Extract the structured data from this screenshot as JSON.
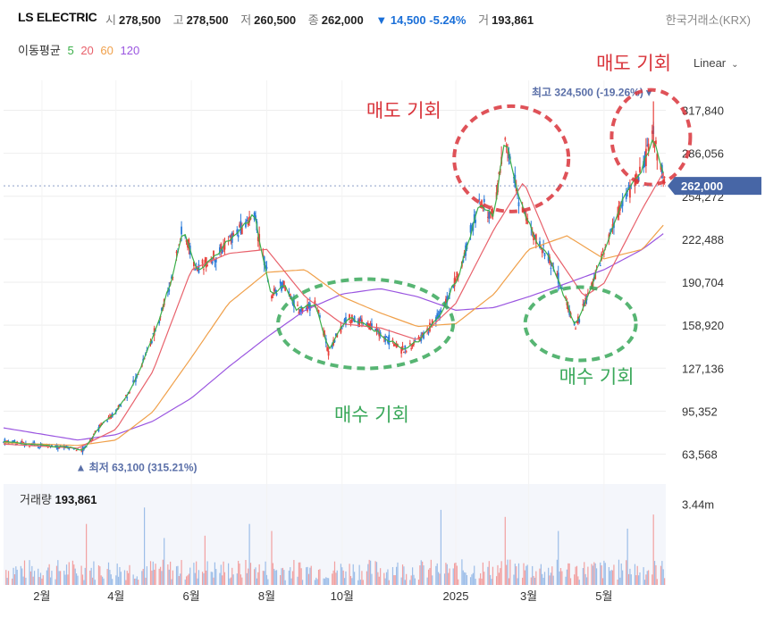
{
  "header": {
    "ticker": "LS ELECTRIC",
    "open_label": "시",
    "open": "278,500",
    "high_label": "고",
    "high": "278,500",
    "low_label": "저",
    "low": "260,500",
    "close_label": "종",
    "close": "262,000",
    "change_arrow": "▼",
    "change": "14,500",
    "change_pct": "-5.24%",
    "volume_label": "거",
    "volume": "193,861",
    "exchange": "한국거래소(KRX)"
  },
  "ma_legend": {
    "label": "이동평균",
    "periods": [
      "5",
      "20",
      "60",
      "120"
    ]
  },
  "scale_selector": {
    "value": "Linear"
  },
  "colors": {
    "up": "#e8413c",
    "down": "#2b7bd9",
    "ma5": "#3cb04a",
    "ma20": "#e8616b",
    "ma60": "#f0a04a",
    "ma120": "#9a55e0",
    "sell_annot": "#d9343b",
    "buy_annot": "#3aa85a",
    "price_tag": "#4766a6"
  },
  "chart_data": {
    "type": "candlestick",
    "y_ticks": [
      63568,
      95352,
      127136,
      158920,
      190704,
      222488,
      254272,
      286056,
      317840
    ],
    "y_tick_labels": [
      "63,568",
      "95,352",
      "127,136",
      "158,920",
      "190,704",
      "222,488",
      "254,272",
      "286,056",
      "317,840"
    ],
    "ylim": [
      56000,
      340000
    ],
    "x_tick_labels": [
      "2월",
      "4월",
      "6월",
      "8월",
      "10월",
      "2025",
      "3월",
      "5월"
    ],
    "x_tick_dates": [
      "2024-02-01",
      "2024-04-01",
      "2024-06-01",
      "2024-08-01",
      "2024-10-01",
      "2025-01-01",
      "2025-03-01",
      "2025-05-01"
    ],
    "x_range": [
      "2024-01-01",
      "2025-06-20"
    ],
    "current_price": 262000,
    "current_price_label": "262,000",
    "high_marker": {
      "date": "2025-06-10",
      "value": 324500,
      "label": "최고 324,500 (-19.26%)"
    },
    "low_marker": {
      "date": "2024-03-05",
      "value": 63100,
      "label": "최저 63,100 (315.21%)"
    },
    "price_path": [
      [
        "2024-01-01",
        73000
      ],
      [
        "2024-02-01",
        70000
      ],
      [
        "2024-02-20",
        69000
      ],
      [
        "2024-03-05",
        66000
      ],
      [
        "2024-03-20",
        85000
      ],
      [
        "2024-04-01",
        95000
      ],
      [
        "2024-04-15",
        115000
      ],
      [
        "2024-05-01",
        150000
      ],
      [
        "2024-05-15",
        190000
      ],
      [
        "2024-05-25",
        230000
      ],
      [
        "2024-06-05",
        200000
      ],
      [
        "2024-06-20",
        210000
      ],
      [
        "2024-07-05",
        225000
      ],
      [
        "2024-07-22",
        240000
      ],
      [
        "2024-08-05",
        180000
      ],
      [
        "2024-08-15",
        190000
      ],
      [
        "2024-08-25",
        170000
      ],
      [
        "2024-09-10",
        175000
      ],
      [
        "2024-09-20",
        140000
      ],
      [
        "2024-10-05",
        165000
      ],
      [
        "2024-10-20",
        160000
      ],
      [
        "2024-11-05",
        150000
      ],
      [
        "2024-11-20",
        140000
      ],
      [
        "2024-12-05",
        150000
      ],
      [
        "2024-12-20",
        168000
      ],
      [
        "2025-01-05",
        200000
      ],
      [
        "2025-01-20",
        250000
      ],
      [
        "2025-02-01",
        240000
      ],
      [
        "2025-02-10",
        300000
      ],
      [
        "2025-02-20",
        255000
      ],
      [
        "2025-03-05",
        225000
      ],
      [
        "2025-03-20",
        205000
      ],
      [
        "2025-04-01",
        175000
      ],
      [
        "2025-04-08",
        158000
      ],
      [
        "2025-04-20",
        185000
      ],
      [
        "2025-05-01",
        215000
      ],
      [
        "2025-05-15",
        250000
      ],
      [
        "2025-05-30",
        270000
      ],
      [
        "2025-06-10",
        300000
      ],
      [
        "2025-06-20",
        262000
      ]
    ],
    "ma20_path": [
      [
        "2024-01-01",
        71000
      ],
      [
        "2024-03-01",
        68000
      ],
      [
        "2024-04-01",
        82000
      ],
      [
        "2024-05-01",
        125000
      ],
      [
        "2024-06-01",
        200000
      ],
      [
        "2024-07-01",
        212000
      ],
      [
        "2024-08-01",
        215000
      ],
      [
        "2024-09-01",
        180000
      ],
      [
        "2024-10-01",
        160000
      ],
      [
        "2024-11-01",
        157000
      ],
      [
        "2024-12-01",
        148000
      ],
      [
        "2025-01-01",
        175000
      ],
      [
        "2025-02-01",
        230000
      ],
      [
        "2025-02-25",
        265000
      ],
      [
        "2025-03-20",
        215000
      ],
      [
        "2025-04-15",
        180000
      ],
      [
        "2025-05-01",
        190000
      ],
      [
        "2025-06-01",
        245000
      ],
      [
        "2025-06-20",
        275000
      ]
    ],
    "ma60_path": [
      [
        "2024-01-01",
        72000
      ],
      [
        "2024-03-01",
        70000
      ],
      [
        "2024-04-01",
        74000
      ],
      [
        "2024-05-01",
        95000
      ],
      [
        "2024-06-01",
        135000
      ],
      [
        "2024-07-01",
        175000
      ],
      [
        "2024-08-01",
        198000
      ],
      [
        "2024-09-01",
        200000
      ],
      [
        "2024-10-01",
        180000
      ],
      [
        "2024-11-01",
        168000
      ],
      [
        "2024-12-01",
        158000
      ],
      [
        "2025-01-01",
        160000
      ],
      [
        "2025-02-01",
        182000
      ],
      [
        "2025-03-01",
        215000
      ],
      [
        "2025-04-01",
        225000
      ],
      [
        "2025-05-01",
        208000
      ],
      [
        "2025-06-01",
        215000
      ],
      [
        "2025-06-20",
        235000
      ]
    ],
    "ma120_path": [
      [
        "2024-01-01",
        83000
      ],
      [
        "2024-03-01",
        74000
      ],
      [
        "2024-04-01",
        78000
      ],
      [
        "2024-05-01",
        88000
      ],
      [
        "2024-06-01",
        105000
      ],
      [
        "2024-07-01",
        128000
      ],
      [
        "2024-08-01",
        150000
      ],
      [
        "2024-09-01",
        170000
      ],
      [
        "2024-10-01",
        182000
      ],
      [
        "2024-11-01",
        186000
      ],
      [
        "2024-12-01",
        180000
      ],
      [
        "2025-01-01",
        170000
      ],
      [
        "2025-02-01",
        172000
      ],
      [
        "2025-03-01",
        180000
      ],
      [
        "2025-04-01",
        190000
      ],
      [
        "2025-05-01",
        200000
      ],
      [
        "2025-06-01",
        215000
      ],
      [
        "2025-06-20",
        228000
      ]
    ],
    "annotations": [
      {
        "text": "매도 기회",
        "kind": "sell",
        "label_date": "2024-11-20",
        "label_value": 313000,
        "circle_date": "2025-02-15",
        "circle_value": 282000
      },
      {
        "text": "매도 기회",
        "kind": "sell",
        "label_date": "2025-05-25",
        "label_value": 348000,
        "circle_date": "2025-06-08",
        "circle_value": 298000
      },
      {
        "text": "매수 기회",
        "kind": "buy",
        "label_date": "2024-10-25",
        "label_value": 88000,
        "circle_date": "2024-10-20",
        "circle_value": 160000
      },
      {
        "text": "매수 기회",
        "kind": "buy",
        "label_date": "2025-04-25",
        "label_value": 116000,
        "circle_date": "2025-04-12",
        "circle_value": 160000
      }
    ],
    "volume_panel": {
      "title": "거래량",
      "latest": "193,861",
      "tick_label": "3.44m",
      "tick_value": 3440000,
      "ylim": [
        0,
        4300000
      ],
      "spikes": [
        [
          "2024-03-08",
          2600000
        ],
        [
          "2024-04-20",
          2800000
        ],
        [
          "2024-04-24",
          3300000
        ],
        [
          "2024-05-10",
          2000000
        ],
        [
          "2024-06-12",
          2100000
        ],
        [
          "2024-07-18",
          2600000
        ],
        [
          "2024-08-05",
          2300000
        ],
        [
          "2024-12-20",
          3200000
        ],
        [
          "2025-02-10",
          2900000
        ],
        [
          "2025-03-25",
          2300000
        ],
        [
          "2025-05-20",
          2400000
        ],
        [
          "2025-06-10",
          3000000
        ]
      ]
    }
  }
}
